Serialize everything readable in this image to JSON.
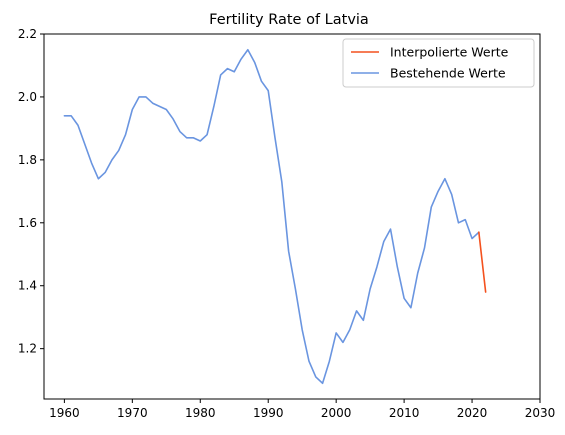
{
  "chart_data": {
    "type": "line",
    "title": "Fertility Rate of Latvia",
    "xlabel": "",
    "ylabel": "",
    "xlim": [
      1957,
      2030
    ],
    "ylim": [
      1.04,
      2.2
    ],
    "x_ticks": [
      1960,
      1970,
      1980,
      1990,
      2000,
      2010,
      2020,
      2030
    ],
    "y_ticks": [
      1.2,
      1.4,
      1.6,
      1.8,
      2.0,
      2.2
    ],
    "grid": false,
    "legend_position": "top-right",
    "series": [
      {
        "name": "Interpolierte Werte",
        "color": "#f4511e",
        "x": [
          2021,
          2022
        ],
        "y": [
          1.57,
          1.38
        ]
      },
      {
        "name": "Bestehende Werte",
        "color": "#6a95e0",
        "x": [
          1960,
          1961,
          1962,
          1963,
          1964,
          1965,
          1966,
          1967,
          1968,
          1969,
          1970,
          1971,
          1972,
          1973,
          1974,
          1975,
          1976,
          1977,
          1978,
          1979,
          1980,
          1981,
          1982,
          1983,
          1984,
          1985,
          1986,
          1987,
          1988,
          1989,
          1990,
          1991,
          1992,
          1993,
          1994,
          1995,
          1996,
          1997,
          1998,
          1999,
          2000,
          2001,
          2002,
          2003,
          2004,
          2005,
          2006,
          2007,
          2008,
          2009,
          2010,
          2011,
          2012,
          2013,
          2014,
          2015,
          2016,
          2017,
          2018,
          2019,
          2020,
          2021
        ],
        "y": [
          1.94,
          1.94,
          1.91,
          1.85,
          1.79,
          1.74,
          1.76,
          1.8,
          1.83,
          1.88,
          1.96,
          2.0,
          2.0,
          1.98,
          1.97,
          1.96,
          1.93,
          1.89,
          1.87,
          1.87,
          1.86,
          1.88,
          1.97,
          2.07,
          2.09,
          2.08,
          2.12,
          2.15,
          2.11,
          2.05,
          2.02,
          1.87,
          1.73,
          1.51,
          1.39,
          1.26,
          1.16,
          1.11,
          1.09,
          1.16,
          1.25,
          1.22,
          1.26,
          1.32,
          1.29,
          1.39,
          1.46,
          1.54,
          1.58,
          1.46,
          1.36,
          1.33,
          1.44,
          1.52,
          1.65,
          1.7,
          1.74,
          1.69,
          1.6,
          1.61,
          1.55,
          1.57
        ]
      }
    ]
  }
}
